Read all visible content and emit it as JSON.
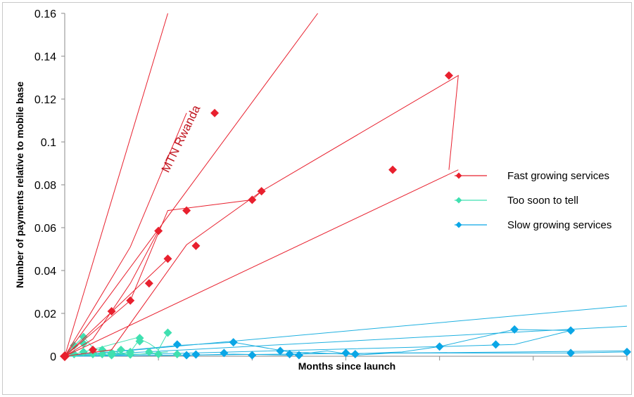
{
  "chart_data": {
    "type": "scatter",
    "title": "",
    "xlabel": "Months since launch",
    "ylabel": "Number of payments relative to mobile base",
    "xlim": [
      0,
      120
    ],
    "ylim": [
      0,
      0.16
    ],
    "yticks": [
      "0",
      "0.02",
      "0.04",
      "0.06",
      "0.08",
      "0.1",
      "0.12",
      "0.14",
      "0.16"
    ],
    "grid": false,
    "legend_position": "right",
    "annotation": "MTN Rwanda",
    "colors": {
      "fast": "#e8202e",
      "soon": "#3fe0b0",
      "slow": "#0aa6e6",
      "trend_fast": "#e8202e",
      "trend_slow": "#1eb0e0"
    },
    "series": [
      {
        "name": "Fast growing services",
        "color": "#e8202e",
        "paths": [
          {
            "x": [
              0,
              6,
              10,
              14,
              20
            ],
            "y": [
              0,
              0.008,
              0.021,
              0.034,
              0.0585
            ]
          },
          {
            "x": [
              0,
              14,
              26
            ],
            "y": [
              0,
              0.051,
              0.1135
            ]
          },
          {
            "x": [
              0,
              10,
              26,
              42,
              84,
              82
            ],
            "y": [
              0,
              0.003,
              0.052,
              0.077,
              0.131,
              0.087
            ]
          },
          {
            "x": [
              0,
              14,
              22,
              40,
              42
            ],
            "y": [
              0,
              0.026,
              0.068,
              0.073,
              0.077
            ]
          },
          {
            "x": [
              0,
              22
            ],
            "y": [
              0,
              0.0455
            ]
          },
          {
            "x": [
              0,
              84
            ],
            "y": [
              0,
              0.087
            ]
          }
        ],
        "trends": [
          {
            "x": [
              0,
              22
            ],
            "y": [
              0,
              0.16
            ]
          },
          {
            "x": [
              0,
              54
            ],
            "y": [
              0,
              0.16
            ]
          }
        ],
        "points": [
          [
            0,
            0
          ],
          [
            6,
            0.003
          ],
          [
            10,
            0.021
          ],
          [
            14,
            0.026
          ],
          [
            18,
            0.034
          ],
          [
            20,
            0.0585
          ],
          [
            22,
            0.0455
          ],
          [
            26,
            0.068
          ],
          [
            28,
            0.0515
          ],
          [
            32,
            0.1135
          ],
          [
            40,
            0.073
          ],
          [
            42,
            0.077
          ],
          [
            70,
            0.087
          ],
          [
            82,
            0.131
          ]
        ]
      },
      {
        "name": "Too soon to tell",
        "color": "#3fe0b0",
        "paths": [
          {
            "x": [
              0,
              2,
              4,
              6,
              8,
              10,
              12,
              14,
              16,
              18,
              20,
              22
            ],
            "y": [
              0,
              0.005,
              0.009,
              0.004,
              0.002,
              0.003,
              0.001,
              0.002,
              0.008,
              0.006,
              0.003,
              0.011
            ]
          },
          {
            "x": [
              0,
              4,
              16
            ],
            "y": [
              0,
              0.002,
              0.009
            ]
          },
          {
            "x": [
              0,
              8,
              16,
              22
            ],
            "y": [
              0,
              0.001,
              0.001,
              0.002
            ]
          }
        ],
        "points": [
          [
            2,
            0.005
          ],
          [
            4,
            0.009
          ],
          [
            4,
            0.006
          ],
          [
            4,
            0.002
          ],
          [
            6,
            0.001
          ],
          [
            8,
            0.003
          ],
          [
            8,
            0.001
          ],
          [
            10,
            0.0015
          ],
          [
            12,
            0.003
          ],
          [
            14,
            0.002
          ],
          [
            16,
            0.0085
          ],
          [
            16,
            0.007
          ],
          [
            18,
            0.002
          ],
          [
            20,
            0.001
          ],
          [
            22,
            0.011
          ],
          [
            24,
            0.001
          ],
          [
            2,
            0.001
          ],
          [
            6,
            0.0015
          ],
          [
            10,
            0.0005
          ],
          [
            14,
            0.0008
          ]
        ]
      },
      {
        "name": "Slow growing services",
        "color": "#0aa6e6",
        "paths": [
          {
            "x": [
              0,
              24,
              36,
              48,
              60,
              72,
              80,
              96,
              108
            ],
            "y": [
              0,
              0.005,
              0.0065,
              0.002,
              0.001,
              0.002,
              0.0045,
              0.0055,
              0.012
            ]
          },
          {
            "x": [
              0,
              80,
              96,
              108
            ],
            "y": [
              0,
              0.0045,
              0.0125,
              0.012
            ]
          },
          {
            "x": [
              0,
              26,
              36,
              48,
              56,
              62,
              70,
              108,
              120
            ],
            "y": [
              0,
              0.0005,
              0.001,
              0.0005,
              0.0025,
              0.0005,
              0.0015,
              0.0015,
              0.002
            ]
          }
        ],
        "trends": [
          {
            "x": [
              0,
              120
            ],
            "y": [
              0,
              0.0235
            ]
          },
          {
            "x": [
              0,
              120
            ],
            "y": [
              0,
              0.014
            ]
          },
          {
            "x": [
              0,
              120
            ],
            "y": [
              0,
              0.0025
            ]
          }
        ],
        "points": [
          [
            24,
            0.0055
          ],
          [
            26,
            0.0005
          ],
          [
            28,
            0.0008
          ],
          [
            34,
            0.0015
          ],
          [
            36,
            0.0065
          ],
          [
            40,
            0.0005
          ],
          [
            46,
            0.0025
          ],
          [
            48,
            0.001
          ],
          [
            50,
            0.0005
          ],
          [
            60,
            0.0015
          ],
          [
            62,
            0.001
          ],
          [
            80,
            0.0045
          ],
          [
            92,
            0.0055
          ],
          [
            96,
            0.0125
          ],
          [
            108,
            0.012
          ],
          [
            108,
            0.0015
          ],
          [
            120,
            0.002
          ]
        ]
      }
    ]
  }
}
